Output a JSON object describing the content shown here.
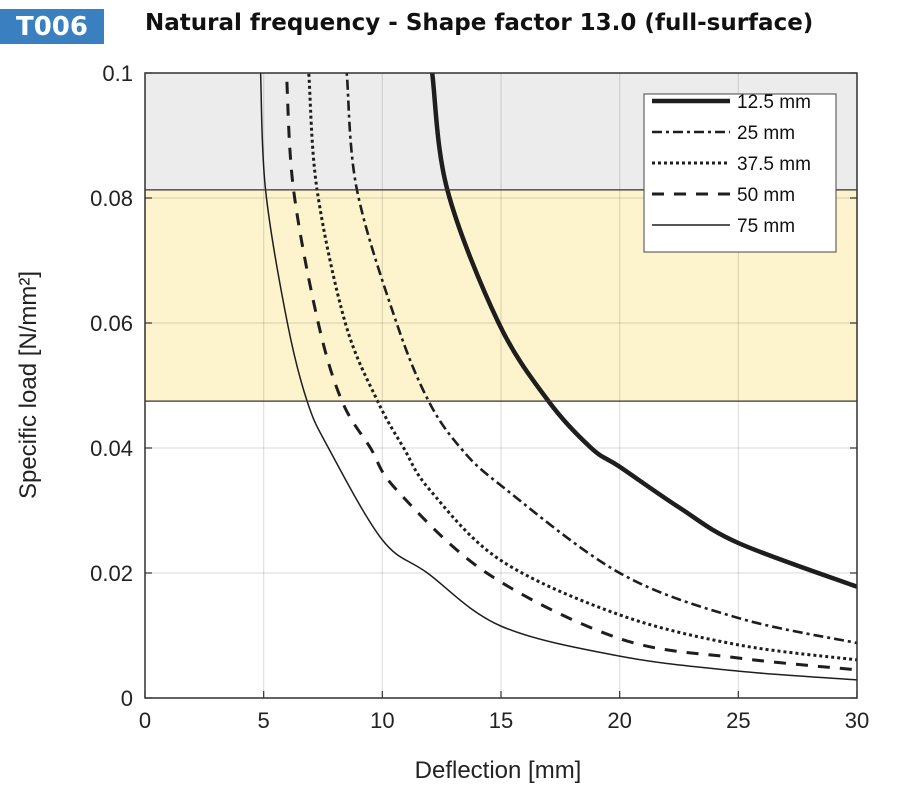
{
  "badge": "T006",
  "chart_data": {
    "type": "line",
    "title": "Natural frequency - Shape factor 13.0 (full-surface)",
    "xlabel": "Deflection  [mm]",
    "ylabel": "Specific load [N/mm²]",
    "xlim": [
      0,
      30
    ],
    "ylim": [
      0,
      0.1
    ],
    "xticks": [
      0,
      5,
      10,
      15,
      20,
      25,
      30
    ],
    "xtick_labels": [
      "0",
      "5",
      "10",
      "15",
      "20",
      "25",
      "30"
    ],
    "yticks": [
      0,
      0.02,
      0.04,
      0.06,
      0.08,
      0.1
    ],
    "ytick_labels": [
      "0",
      "0.02",
      "0.04",
      "0.06",
      "0.08",
      "0.1"
    ],
    "grid": true,
    "legend_position": "top-right",
    "bands": [
      {
        "name": "gray-region",
        "y0": 0.0813,
        "y1": 0.1,
        "color": "#ececec"
      },
      {
        "name": "yellow-region",
        "y0": 0.0475,
        "y1": 0.0813,
        "color": "#fdf3cc"
      }
    ],
    "series": [
      {
        "name": "12.5 mm",
        "style": "solid-thick",
        "color": "#1e1e1e",
        "points": [
          [
            12.1,
            0.1
          ],
          [
            12.74,
            0.0813
          ],
          [
            14.9,
            0.06
          ],
          [
            17.0,
            0.0475
          ],
          [
            18.8,
            0.04
          ],
          [
            20,
            0.037
          ],
          [
            22.5,
            0.0305
          ],
          [
            25,
            0.0248
          ],
          [
            30,
            0.0178
          ]
        ]
      },
      {
        "name": "25 mm",
        "style": "dash-dot",
        "color": "#1e1e1e",
        "points": [
          [
            8.5,
            0.1
          ],
          [
            8.93,
            0.0813
          ],
          [
            10.6,
            0.06
          ],
          [
            11.95,
            0.0475
          ],
          [
            13.3,
            0.04
          ],
          [
            15,
            0.034
          ],
          [
            20,
            0.02
          ],
          [
            25,
            0.0128
          ],
          [
            30,
            0.0088
          ]
        ]
      },
      {
        "name": "37.5 mm",
        "style": "dotted",
        "color": "#1e1e1e",
        "points": [
          [
            6.9,
            0.1
          ],
          [
            7.25,
            0.0813
          ],
          [
            8.44,
            0.06
          ],
          [
            9.8,
            0.0475
          ],
          [
            10.9,
            0.04
          ],
          [
            12,
            0.0333
          ],
          [
            15,
            0.022
          ],
          [
            20,
            0.0133
          ],
          [
            25,
            0.0085
          ],
          [
            30,
            0.0061
          ]
        ]
      },
      {
        "name": "50 mm",
        "style": "dashed",
        "color": "#1e1e1e",
        "points": [
          [
            5.96,
            0.1
          ],
          [
            6.26,
            0.0813
          ],
          [
            7.3,
            0.06
          ],
          [
            8.3,
            0.0475
          ],
          [
            9.5,
            0.04
          ],
          [
            10.6,
            0.0333
          ],
          [
            14.4,
            0.02
          ],
          [
            20,
            0.0095
          ],
          [
            25,
            0.0064
          ],
          [
            30,
            0.0045
          ]
        ]
      },
      {
        "name": "75 mm",
        "style": "solid-thin",
        "color": "#1e1e1e",
        "points": [
          [
            4.87,
            0.1
          ],
          [
            5.08,
            0.0813
          ],
          [
            6.0,
            0.06
          ],
          [
            6.83,
            0.0475
          ],
          [
            7.73,
            0.04
          ],
          [
            10,
            0.0253
          ],
          [
            11.9,
            0.02
          ],
          [
            15,
            0.0115
          ],
          [
            20,
            0.0067
          ],
          [
            25,
            0.0043
          ],
          [
            30,
            0.0029
          ]
        ]
      }
    ]
  }
}
